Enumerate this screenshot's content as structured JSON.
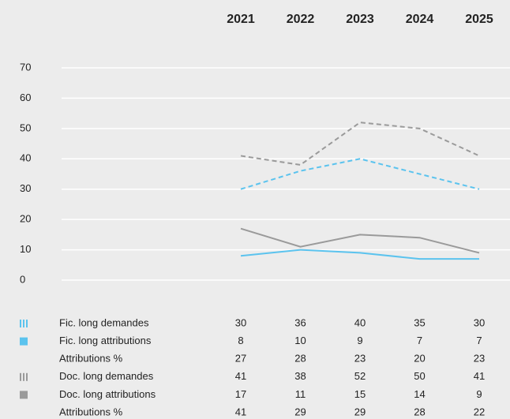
{
  "chart_data": {
    "type": "line",
    "categories": [
      "2021",
      "2022",
      "2023",
      "2024",
      "2025"
    ],
    "ylim": [
      0,
      70
    ],
    "yticks": [
      0,
      10,
      20,
      30,
      40,
      50,
      60,
      70
    ],
    "grid": true,
    "series": [
      {
        "name": "Fic. long demandes",
        "color": "#5bc3ee",
        "style": "dashed",
        "values": [
          30,
          36,
          40,
          35,
          30
        ]
      },
      {
        "name": "Fic. long attributions",
        "color": "#5bc3ee",
        "style": "solid",
        "values": [
          8,
          10,
          9,
          7,
          7
        ]
      },
      {
        "name": "Attributions %",
        "values": [
          27,
          28,
          23,
          20,
          23
        ]
      },
      {
        "name": "Doc. long demandes",
        "color": "#9a9a9a",
        "style": "dashed",
        "values": [
          41,
          38,
          52,
          50,
          41
        ]
      },
      {
        "name": "Doc. long attributions",
        "color": "#9a9a9a",
        "style": "solid",
        "values": [
          17,
          11,
          15,
          14,
          9
        ]
      },
      {
        "name": "Attributions %",
        "values": [
          41,
          29,
          29,
          28,
          22
        ]
      }
    ]
  }
}
